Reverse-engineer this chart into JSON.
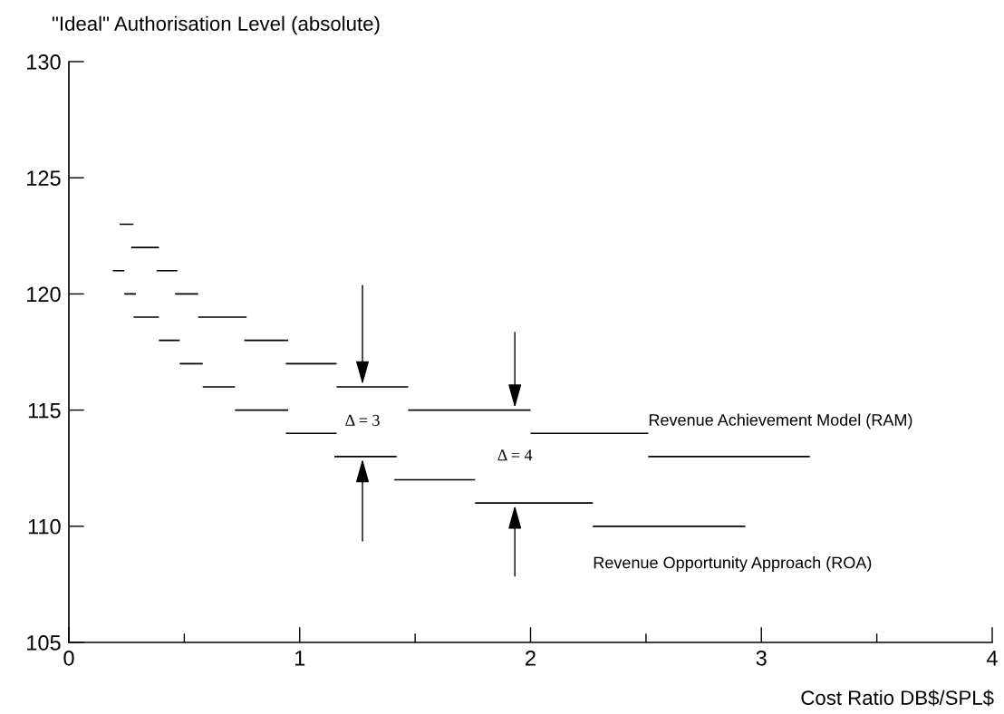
{
  "chart_data": {
    "type": "line",
    "ylabel": "\"Ideal\" Authorisation Level (absolute)",
    "xlabel": "Cost Ratio DB$/SPL$",
    "xlim": [
      0,
      4
    ],
    "ylim": [
      105,
      130
    ],
    "xticks": [
      0,
      {
        "value": 0.5,
        "label": null
      },
      1,
      {
        "value": 1.5,
        "label": null
      },
      2,
      {
        "value": 2.5,
        "label": null
      },
      3,
      {
        "value": 3.5,
        "label": null
      },
      4
    ],
    "yticks": [
      105,
      110,
      115,
      120,
      125,
      130
    ],
    "grid": false,
    "legend": false,
    "marker": "none",
    "line_style": "solid",
    "series": [
      {
        "name": "Revenue Achievement Model (RAM)",
        "color": "#000000",
        "x": [
          0.22,
          0.28,
          null,
          0.27,
          0.39,
          null,
          0.38,
          0.47,
          null,
          0.46,
          0.56,
          null,
          0.56,
          0.77,
          null,
          0.76,
          0.95,
          null,
          0.94,
          1.16,
          null,
          1.16,
          1.47,
          null,
          1.47,
          2.0,
          null,
          2.0,
          2.51,
          null,
          2.51,
          3.21
        ],
        "values": [
          123,
          123,
          null,
          122,
          122,
          null,
          121,
          121,
          null,
          120,
          120,
          null,
          119,
          119,
          null,
          118,
          118,
          null,
          117,
          117,
          null,
          116,
          116,
          null,
          115,
          115,
          null,
          114,
          114,
          null,
          113,
          113
        ]
      },
      {
        "name": "Revenue Opportunity Approach (ROA)",
        "color": "#000000",
        "x": [
          0.19,
          0.24,
          null,
          0.24,
          0.29,
          null,
          0.28,
          0.39,
          null,
          0.39,
          0.48,
          null,
          0.48,
          0.58,
          null,
          0.58,
          0.72,
          null,
          0.72,
          0.95,
          null,
          0.94,
          1.16,
          null,
          1.15,
          1.42,
          null,
          1.41,
          1.76,
          null,
          1.76,
          2.27,
          null,
          2.27,
          2.93
        ],
        "values": [
          121,
          121,
          null,
          120,
          120,
          null,
          119,
          119,
          null,
          118,
          118,
          null,
          117,
          117,
          null,
          116,
          116,
          null,
          115,
          115,
          null,
          114,
          114,
          null,
          113,
          113,
          null,
          112,
          112,
          null,
          111,
          111,
          null,
          110,
          110
        ]
      }
    ],
    "annotations": [
      "Δ = 3",
      "Δ = 4"
    ]
  }
}
